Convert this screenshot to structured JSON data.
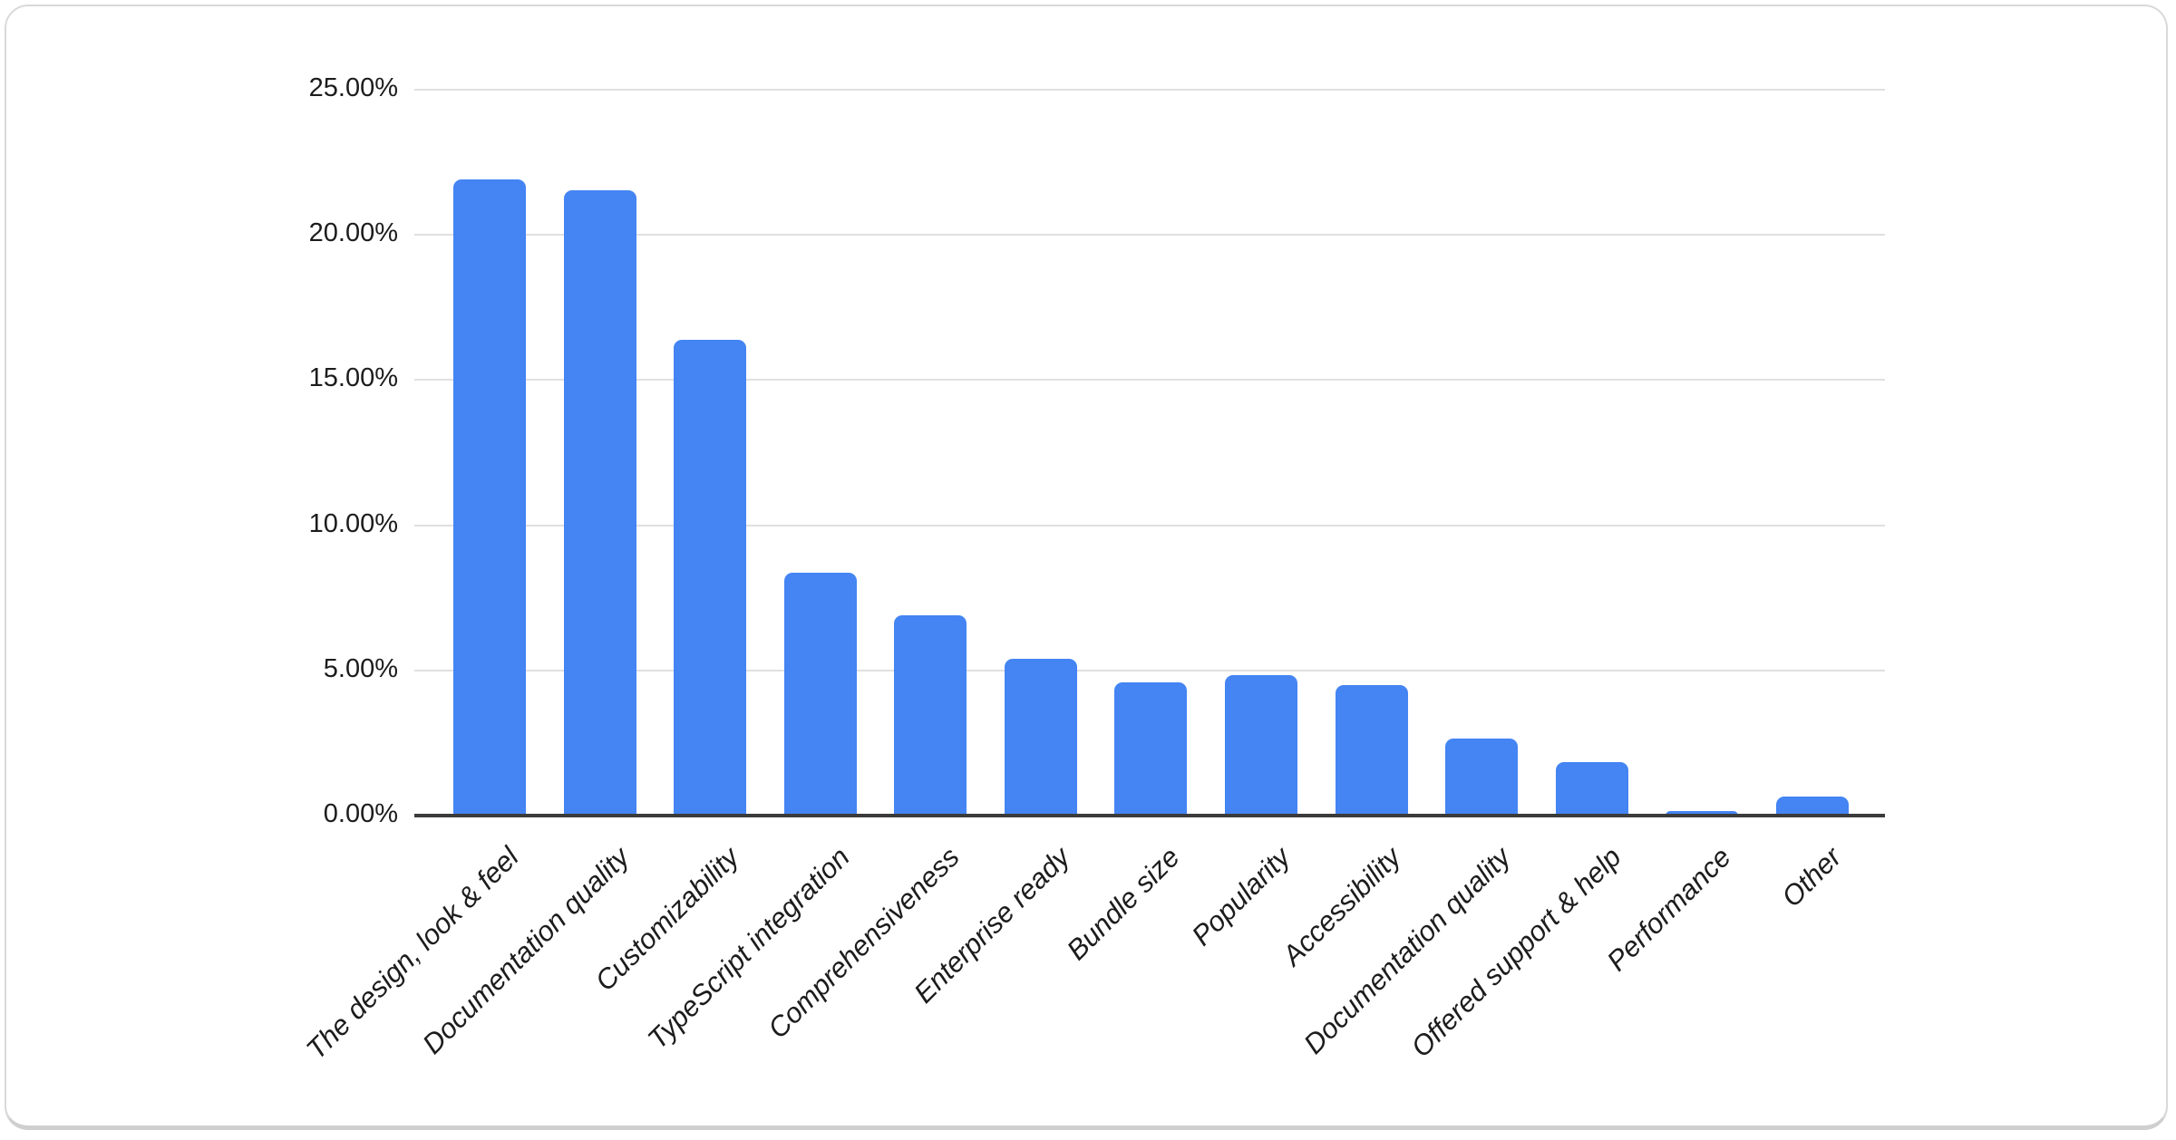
{
  "chart_data": {
    "type": "bar",
    "title": "",
    "xlabel": "",
    "ylabel": "",
    "categories": [
      "The design, look & feel",
      "Documentation quality",
      "Customizability",
      "TypeScript integration",
      "Comprehensiveness",
      "Enterprise ready",
      "Bundle size",
      "Popularity",
      "Accessibility",
      "Documentation quality",
      "Offered support & help",
      "Performance",
      "Other"
    ],
    "values": [
      21.9,
      21.55,
      16.4,
      8.35,
      6.9,
      5.4,
      4.6,
      4.85,
      4.5,
      2.65,
      1.85,
      0.15,
      0.65
    ],
    "value_unit": "%",
    "ylim": [
      0,
      25
    ],
    "y_ticks": [
      "0.00%",
      "5.00%",
      "10.00%",
      "15.00%",
      "20.00%",
      "25.00%"
    ],
    "y_tick_step": 5,
    "grid": true,
    "legend_position": "none",
    "x_label_style": "slanted-italic-45deg"
  },
  "colors": {
    "bar": "#4484f3",
    "gridline": "#e0e0e0",
    "axis_line": "#3b3b3b",
    "label_text": "#1c1c1c",
    "card_border": "#d9d9d9",
    "background": "#ffffff"
  }
}
